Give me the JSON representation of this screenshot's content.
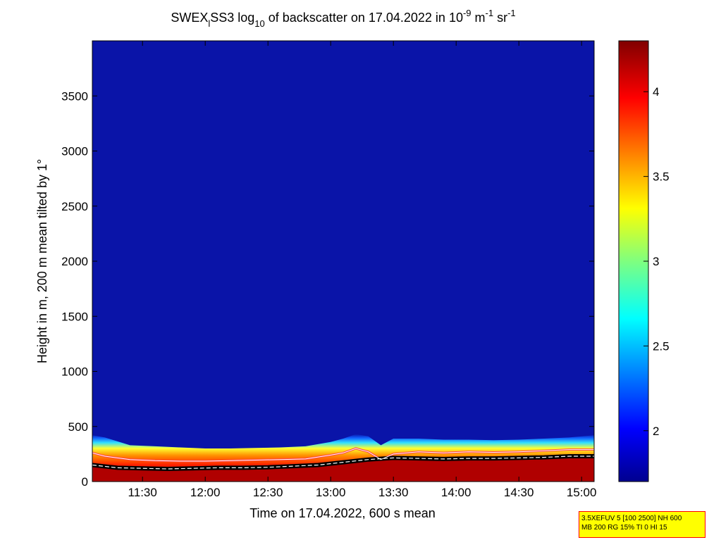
{
  "colors": {
    "low": "#00008f",
    "field": "#0a14a8",
    "cloud_base_line": "#ffffff",
    "layer_top_line": "#ff4040",
    "black_band": "#000000",
    "info_bg": "#ffff00",
    "info_border": "#ff0000"
  },
  "chart_data": {
    "type": "heatmap",
    "title_parts": {
      "a": "SWEX",
      "a_sub": "l",
      "b": "SS3 log",
      "b_sub": "10",
      "c": " of backscatter on 17.04.2022 in 10",
      "c_sup": "-9",
      "d": " m",
      "d_sup": "-1",
      "e": " sr",
      "e_sup": "-1"
    },
    "xlabel": "Time on 17.04.2022, 600 s mean",
    "ylabel": "Height in m, 200 m mean tilted by 1°",
    "x_range_hours": [
      11.1,
      15.1
    ],
    "ylim": [
      0,
      4000
    ],
    "x_ticks": [
      {
        "hour": 11.5,
        "label": "11:30"
      },
      {
        "hour": 12.0,
        "label": "12:00"
      },
      {
        "hour": 12.5,
        "label": "12:30"
      },
      {
        "hour": 13.0,
        "label": "13:00"
      },
      {
        "hour": 13.5,
        "label": "13:30"
      },
      {
        "hour": 14.0,
        "label": "14:00"
      },
      {
        "hour": 14.5,
        "label": "14:30"
      },
      {
        "hour": 15.0,
        "label": "15:00"
      }
    ],
    "y_ticks": [
      {
        "value": 0,
        "label": "0"
      },
      {
        "value": 500,
        "label": "500"
      },
      {
        "value": 1000,
        "label": "1000"
      },
      {
        "value": 1500,
        "label": "1500"
      },
      {
        "value": 2000,
        "label": "2000"
      },
      {
        "value": 2500,
        "label": "2500"
      },
      {
        "value": 3000,
        "label": "3000"
      },
      {
        "value": 3500,
        "label": "3500"
      }
    ],
    "colorbar": {
      "range": [
        1.7,
        4.3
      ],
      "ticks": [
        {
          "value": 2,
          "label": "2"
        },
        {
          "value": 2.5,
          "label": "2.5"
        },
        {
          "value": 3,
          "label": "3"
        },
        {
          "value": 3.5,
          "label": "3.5"
        },
        {
          "value": 4,
          "label": "4"
        }
      ]
    },
    "layer_top": {
      "hours": [
        11.1,
        11.2,
        11.4,
        11.6,
        11.8,
        12.0,
        12.2,
        12.4,
        12.6,
        12.8,
        13.0,
        13.1,
        13.2,
        13.3,
        13.4,
        13.5,
        13.7,
        13.9,
        14.1,
        14.3,
        14.5,
        14.7,
        14.9,
        15.1
      ],
      "heights": [
        420,
        400,
        330,
        320,
        310,
        300,
        300,
        305,
        310,
        320,
        360,
        390,
        430,
        410,
        330,
        390,
        390,
        380,
        380,
        375,
        380,
        390,
        400,
        420
      ]
    },
    "peak_line": {
      "hours": [
        11.1,
        11.2,
        11.4,
        11.6,
        11.8,
        12.0,
        12.2,
        12.4,
        12.6,
        12.8,
        13.0,
        13.1,
        13.2,
        13.3,
        13.4,
        13.5,
        13.7,
        13.9,
        14.1,
        14.3,
        14.5,
        14.7,
        14.9,
        15.1
      ],
      "heights": [
        260,
        230,
        200,
        190,
        185,
        185,
        190,
        195,
        200,
        205,
        240,
        260,
        300,
        270,
        200,
        250,
        270,
        260,
        270,
        265,
        270,
        280,
        290,
        290
      ]
    },
    "cloud_base": {
      "hours": [
        11.1,
        11.3,
        11.5,
        11.7,
        11.9,
        12.1,
        12.3,
        12.5,
        12.7,
        12.9,
        13.1,
        13.3,
        13.5,
        13.7,
        13.9,
        14.1,
        14.3,
        14.5,
        14.7,
        14.9,
        15.1
      ],
      "heights": [
        150,
        125,
        120,
        115,
        120,
        125,
        125,
        130,
        140,
        150,
        175,
        200,
        215,
        210,
        205,
        210,
        210,
        215,
        220,
        230,
        230
      ]
    },
    "info_lines": [
      "3.5XEFUV 5 [100 2500] NH 600",
      "MB 200 RG 15% TI 0 HI 15"
    ]
  }
}
